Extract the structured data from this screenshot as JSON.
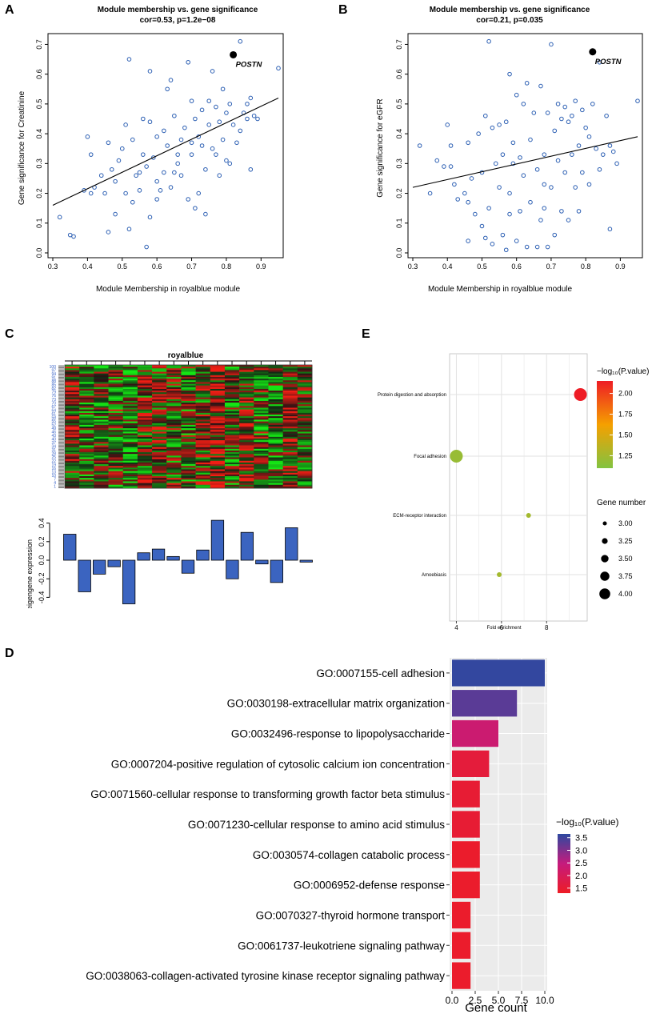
{
  "panels": {
    "A": {
      "label": "A",
      "chart_data": {
        "type": "scatter",
        "title": "Module membership vs. gene significance",
        "subtitle": "cor=0.53, p=1.2e−08",
        "xlabel": "Module Membership in royalblue module",
        "ylabel": "Gene significance for  Creatinine",
        "xlim": [
          0.3,
          0.95
        ],
        "ylim": [
          0.0,
          0.72
        ],
        "xticks": [
          "0.3",
          "0.4",
          "0.5",
          "0.6",
          "0.7",
          "0.8",
          "0.9"
        ],
        "yticks": [
          "0.0",
          "0.1",
          "0.2",
          "0.3",
          "0.4",
          "0.5",
          "0.6",
          "0.7"
        ],
        "fit_line": {
          "x0": 0.3,
          "y0": 0.16,
          "x1": 0.95,
          "y1": 0.52
        },
        "highlight": {
          "label": "POSTN",
          "x": 0.82,
          "y": 0.665
        },
        "points": [
          [
            0.32,
            0.12
          ],
          [
            0.35,
            0.06
          ],
          [
            0.36,
            0.055
          ],
          [
            0.39,
            0.21
          ],
          [
            0.4,
            0.39
          ],
          [
            0.41,
            0.33
          ],
          [
            0.41,
            0.2
          ],
          [
            0.42,
            0.22
          ],
          [
            0.44,
            0.26
          ],
          [
            0.45,
            0.2
          ],
          [
            0.46,
            0.07
          ],
          [
            0.46,
            0.37
          ],
          [
            0.47,
            0.28
          ],
          [
            0.48,
            0.24
          ],
          [
            0.48,
            0.13
          ],
          [
            0.49,
            0.31
          ],
          [
            0.5,
            0.35
          ],
          [
            0.51,
            0.2
          ],
          [
            0.51,
            0.43
          ],
          [
            0.52,
            0.65
          ],
          [
            0.52,
            0.08
          ],
          [
            0.53,
            0.17
          ],
          [
            0.53,
            0.38
          ],
          [
            0.54,
            0.26
          ],
          [
            0.55,
            0.21
          ],
          [
            0.56,
            0.33
          ],
          [
            0.56,
            0.45
          ],
          [
            0.57,
            0.02
          ],
          [
            0.57,
            0.29
          ],
          [
            0.58,
            0.61
          ],
          [
            0.58,
            0.12
          ],
          [
            0.58,
            0.44
          ],
          [
            0.59,
            0.32
          ],
          [
            0.6,
            0.39
          ],
          [
            0.6,
            0.18
          ],
          [
            0.61,
            0.21
          ],
          [
            0.62,
            0.41
          ],
          [
            0.62,
            0.27
          ],
          [
            0.63,
            0.55
          ],
          [
            0.63,
            0.36
          ],
          [
            0.64,
            0.58
          ],
          [
            0.64,
            0.22
          ],
          [
            0.65,
            0.46
          ],
          [
            0.65,
            0.27
          ],
          [
            0.66,
            0.3
          ],
          [
            0.67,
            0.38
          ],
          [
            0.67,
            0.26
          ],
          [
            0.68,
            0.42
          ],
          [
            0.69,
            0.18
          ],
          [
            0.69,
            0.64
          ],
          [
            0.7,
            0.51
          ],
          [
            0.7,
            0.33
          ],
          [
            0.71,
            0.45
          ],
          [
            0.71,
            0.15
          ],
          [
            0.72,
            0.39
          ],
          [
            0.72,
            0.2
          ],
          [
            0.73,
            0.36
          ],
          [
            0.73,
            0.48
          ],
          [
            0.74,
            0.28
          ],
          [
            0.74,
            0.13
          ],
          [
            0.75,
            0.43
          ],
          [
            0.75,
            0.51
          ],
          [
            0.76,
            0.35
          ],
          [
            0.76,
            0.61
          ],
          [
            0.77,
            0.33
          ],
          [
            0.78,
            0.44
          ],
          [
            0.78,
            0.26
          ],
          [
            0.79,
            0.38
          ],
          [
            0.79,
            0.55
          ],
          [
            0.8,
            0.47
          ],
          [
            0.8,
            0.31
          ],
          [
            0.81,
            0.5
          ],
          [
            0.81,
            0.3
          ],
          [
            0.82,
            0.43
          ],
          [
            0.83,
            0.37
          ],
          [
            0.84,
            0.41
          ],
          [
            0.84,
            0.71
          ],
          [
            0.85,
            0.47
          ],
          [
            0.86,
            0.5
          ],
          [
            0.86,
            0.45
          ],
          [
            0.87,
            0.28
          ],
          [
            0.87,
            0.52
          ],
          [
            0.88,
            0.46
          ],
          [
            0.89,
            0.45
          ],
          [
            0.95,
            0.62
          ],
          [
            0.6,
            0.24
          ],
          [
            0.66,
            0.33
          ],
          [
            0.7,
            0.37
          ],
          [
            0.77,
            0.49
          ],
          [
            0.55,
            0.27
          ]
        ]
      }
    },
    "B": {
      "label": "B",
      "chart_data": {
        "type": "scatter",
        "title": "Module membership vs. gene significance",
        "subtitle": "cor=0.21, p=0.035",
        "xlabel": "Module Membership in royalblue module",
        "ylabel": "Gene significance for  eGFR",
        "xlim": [
          0.3,
          0.95
        ],
        "ylim": [
          0.0,
          0.72
        ],
        "xticks": [
          "0.3",
          "0.4",
          "0.5",
          "0.6",
          "0.7",
          "0.8",
          "0.9"
        ],
        "yticks": [
          "0.0",
          "0.1",
          "0.2",
          "0.3",
          "0.4",
          "0.5",
          "0.6",
          "0.7"
        ],
        "fit_line": {
          "x0": 0.3,
          "y0": 0.22,
          "x1": 0.95,
          "y1": 0.39
        },
        "highlight": {
          "label": "POSTN",
          "x": 0.82,
          "y": 0.675
        },
        "points": [
          [
            0.32,
            0.36
          ],
          [
            0.35,
            0.2
          ],
          [
            0.37,
            0.31
          ],
          [
            0.39,
            0.29
          ],
          [
            0.4,
            0.43
          ],
          [
            0.41,
            0.29
          ],
          [
            0.41,
            0.36
          ],
          [
            0.42,
            0.23
          ],
          [
            0.43,
            0.18
          ],
          [
            0.45,
            0.2
          ],
          [
            0.46,
            0.37
          ],
          [
            0.46,
            0.04
          ],
          [
            0.47,
            0.25
          ],
          [
            0.48,
            0.13
          ],
          [
            0.49,
            0.4
          ],
          [
            0.5,
            0.09
          ],
          [
            0.51,
            0.05
          ],
          [
            0.51,
            0.46
          ],
          [
            0.52,
            0.71
          ],
          [
            0.52,
            0.15
          ],
          [
            0.53,
            0.03
          ],
          [
            0.54,
            0.3
          ],
          [
            0.55,
            0.43
          ],
          [
            0.55,
            0.22
          ],
          [
            0.56,
            0.06
          ],
          [
            0.56,
            0.33
          ],
          [
            0.57,
            0.01
          ],
          [
            0.57,
            0.44
          ],
          [
            0.58,
            0.6
          ],
          [
            0.58,
            0.2
          ],
          [
            0.59,
            0.3
          ],
          [
            0.59,
            0.37
          ],
          [
            0.6,
            0.04
          ],
          [
            0.6,
            0.53
          ],
          [
            0.61,
            0.14
          ],
          [
            0.62,
            0.5
          ],
          [
            0.62,
            0.26
          ],
          [
            0.63,
            0.57
          ],
          [
            0.63,
            0.02
          ],
          [
            0.64,
            0.38
          ],
          [
            0.64,
            0.17
          ],
          [
            0.65,
            0.47
          ],
          [
            0.66,
            0.02
          ],
          [
            0.66,
            0.28
          ],
          [
            0.67,
            0.56
          ],
          [
            0.67,
            0.11
          ],
          [
            0.68,
            0.33
          ],
          [
            0.68,
            0.15
          ],
          [
            0.69,
            0.47
          ],
          [
            0.69,
            0.02
          ],
          [
            0.7,
            0.7
          ],
          [
            0.7,
            0.22
          ],
          [
            0.71,
            0.41
          ],
          [
            0.71,
            0.06
          ],
          [
            0.72,
            0.31
          ],
          [
            0.73,
            0.45
          ],
          [
            0.73,
            0.14
          ],
          [
            0.74,
            0.49
          ],
          [
            0.74,
            0.27
          ],
          [
            0.75,
            0.44
          ],
          [
            0.75,
            0.11
          ],
          [
            0.76,
            0.46
          ],
          [
            0.76,
            0.33
          ],
          [
            0.77,
            0.51
          ],
          [
            0.77,
            0.22
          ],
          [
            0.78,
            0.36
          ],
          [
            0.78,
            0.14
          ],
          [
            0.79,
            0.48
          ],
          [
            0.79,
            0.27
          ],
          [
            0.8,
            0.42
          ],
          [
            0.81,
            0.39
          ],
          [
            0.81,
            0.23
          ],
          [
            0.82,
            0.5
          ],
          [
            0.83,
            0.35
          ],
          [
            0.84,
            0.28
          ],
          [
            0.84,
            0.64
          ],
          [
            0.85,
            0.33
          ],
          [
            0.86,
            0.46
          ],
          [
            0.87,
            0.08
          ],
          [
            0.87,
            0.36
          ],
          [
            0.88,
            0.34
          ],
          [
            0.89,
            0.3
          ],
          [
            0.95,
            0.51
          ],
          [
            0.46,
            0.17
          ],
          [
            0.53,
            0.42
          ],
          [
            0.61,
            0.32
          ],
          [
            0.68,
            0.23
          ],
          [
            0.72,
            0.5
          ],
          [
            0.58,
            0.13
          ],
          [
            0.5,
            0.27
          ]
        ]
      }
    },
    "C": {
      "label": "C",
      "heatmap_title": "royalblue",
      "row_labels": [
        "100",
        "97",
        "94",
        "91",
        "88",
        "85",
        "82",
        "79",
        "76",
        "73",
        "70",
        "67",
        "64",
        "61",
        "58",
        "55",
        "52",
        "49",
        "46",
        "43",
        "40",
        "37",
        "34",
        "31",
        "28",
        "25",
        "22",
        "19",
        "16",
        "13",
        "10",
        "7",
        "4",
        "1"
      ],
      "chart_data": {
        "type": "bar",
        "ylabel": "eigengene expression",
        "ylim": [
          -0.5,
          0.5
        ],
        "yticks": [
          "0.4",
          "0.2",
          "0.0",
          "-0.2",
          "-0.4"
        ],
        "ytick_values": [
          0.4,
          0.2,
          0.0,
          -0.2,
          -0.4
        ],
        "values": [
          0.28,
          -0.34,
          -0.15,
          -0.07,
          -0.47,
          0.08,
          0.12,
          0.04,
          -0.14,
          0.11,
          0.43,
          -0.2,
          0.3,
          -0.04,
          -0.24,
          0.35,
          -0.02
        ]
      }
    },
    "E": {
      "label": "E",
      "chart_data": {
        "type": "scatter",
        "categories": [
          "Protein digestion and absorption",
          "Focal adhesion",
          "ECM-receptor interaction",
          "Amoebiasis"
        ],
        "xlabel": "Fold enrichment",
        "xticks": [
          4,
          6,
          8
        ],
        "xlim": [
          3.7,
          9.8
        ],
        "points": [
          {
            "term": "Protein digestion and absorption",
            "fold_enrichment": 9.5,
            "gene_number": 4,
            "neg_log10_p": 2.15
          },
          {
            "term": "Focal adhesion",
            "fold_enrichment": 4.0,
            "gene_number": 4,
            "neg_log10_p": 1.2
          },
          {
            "term": "ECM-receptor interaction",
            "fold_enrichment": 7.2,
            "gene_number": 3,
            "neg_log10_p": 1.25
          },
          {
            "term": "Amoebiasis",
            "fold_enrichment": 5.9,
            "gene_number": 3,
            "neg_log10_p": 1.25
          }
        ],
        "color_legend": {
          "title": "−log₁₀(P.value)",
          "ticks": [
            "2.00",
            "1.75",
            "1.50",
            "1.25"
          ],
          "tick_values": [
            2.0,
            1.75,
            1.5,
            1.25
          ],
          "range": [
            1.1,
            2.15
          ],
          "colors": [
            "#ee1c25",
            "#f5a000",
            "#82c341"
          ]
        },
        "size_legend": {
          "title": "Gene number",
          "ticks": [
            "3.00",
            "3.25",
            "3.50",
            "3.75",
            "4.00"
          ],
          "tick_values": [
            3.0,
            3.25,
            3.5,
            3.75,
            4.0
          ]
        }
      }
    },
    "D": {
      "label": "D",
      "chart_data": {
        "type": "bar",
        "orientation": "horizontal",
        "categories": [
          "GO:0007155-cell adhesion",
          "GO:0030198-extracellular matrix organization",
          "GO:0032496-response to lipopolysaccharide",
          "GO:0007204-positive regulation of cytosolic calcium ion concentration",
          "GO:0071560-cellular response to transforming growth factor beta stimulus",
          "GO:0071230-cellular response to amino acid stimulus",
          "GO:0030574-collagen catabolic process",
          "GO:0006952-defense response",
          "GO:0070327-thyroid hormone transport",
          "GO:0061737-leukotriene signaling pathway",
          "GO:0038063-collagen-activated tyrosine kinase receptor signaling pathway"
        ],
        "values": [
          10,
          7,
          5,
          4,
          3,
          3,
          3,
          3,
          2,
          2,
          2
        ],
        "neg_log10_p": [
          3.6,
          3.3,
          2.3,
          1.6,
          1.5,
          1.5,
          1.4,
          1.4,
          1.4,
          1.4,
          1.4
        ],
        "xlabel": "Gene count",
        "xticks": [
          "0.0",
          "2.5",
          "5.0",
          "7.5",
          "10.0"
        ],
        "xtick_values": [
          0,
          2.5,
          5,
          7.5,
          10
        ],
        "xlim": [
          0,
          10
        ],
        "legend": {
          "title": "−log₁₀(P.value)",
          "ticks": [
            "3.5",
            "3.0",
            "2.5",
            "2.0",
            "1.5"
          ],
          "tick_values": [
            3.5,
            3.0,
            2.5,
            2.0,
            1.5
          ],
          "range": [
            1.3,
            3.65
          ],
          "colors": [
            "#2d49a0",
            "#c51b7d",
            "#ee1c25"
          ]
        }
      }
    }
  }
}
